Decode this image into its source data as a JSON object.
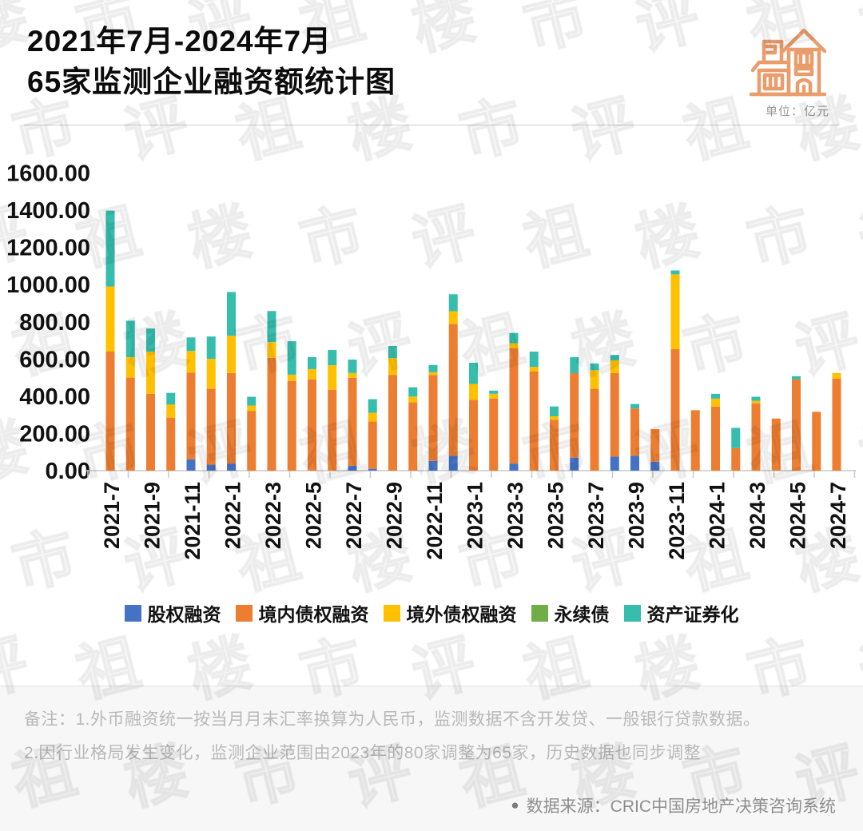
{
  "header": {
    "title_line1": "2021年7月-2024年7月",
    "title_line2": "65家监测企业融资额统计图",
    "unit_label": "单位：亿元"
  },
  "watermark": {
    "characters": [
      "楼",
      "市",
      "评",
      "祖"
    ]
  },
  "chart_data": {
    "type": "bar",
    "stacked": true,
    "title": "65家监测企业融资额统计图",
    "unit": "亿元",
    "xlabel": "",
    "ylabel": "",
    "ylim": [
      0,
      1600
    ],
    "ytick_step": 200,
    "ytick_decimals": 2,
    "grid": false,
    "legend_position": "bottom",
    "x_label_every": 2,
    "categories": [
      "2021-7",
      "2021-8",
      "2021-9",
      "2021-10",
      "2021-11",
      "2021-12",
      "2022-1",
      "2022-2",
      "2022-3",
      "2022-4",
      "2022-5",
      "2022-6",
      "2022-7",
      "2022-8",
      "2022-9",
      "2022-10",
      "2022-11",
      "2022-12",
      "2023-1",
      "2023-2",
      "2023-3",
      "2023-4",
      "2023-5",
      "2023-6",
      "2023-7",
      "2023-8",
      "2023-9",
      "2023-10",
      "2023-11",
      "2023-12",
      "2024-1",
      "2024-2",
      "2024-3",
      "2024-4",
      "2024-5",
      "2024-6",
      "2024-7"
    ],
    "series": [
      {
        "name": "股权融资",
        "color": "#4472C4",
        "values": [
          0,
          0,
          0,
          0,
          60,
          32,
          38,
          0,
          0,
          0,
          0,
          0,
          26,
          10,
          0,
          0,
          52,
          80,
          0,
          0,
          38,
          0,
          0,
          70,
          0,
          75,
          80,
          48,
          0,
          0,
          0,
          0,
          0,
          0,
          0,
          0,
          0
        ]
      },
      {
        "name": "境内债权融资",
        "color": "#ED7D31",
        "values": [
          640,
          500,
          413,
          285,
          466,
          408,
          487,
          320,
          606,
          482,
          491,
          435,
          473,
          254,
          515,
          367,
          462,
          709,
          381,
          387,
          620,
          533,
          273,
          454,
          440,
          449,
          254,
          175,
          653,
          325,
          344,
          121,
          362,
          280,
          490,
          316,
          495
        ]
      },
      {
        "name": "境外债权融资",
        "color": "#FFC000",
        "values": [
          350,
          110,
          227,
          70,
          117,
          161,
          200,
          30,
          85,
          34,
          55,
          132,
          26,
          47,
          90,
          31,
          15,
          68,
          85,
          26,
          27,
          25,
          19,
          0,
          100,
          69,
          0,
          0,
          402,
          0,
          43,
          0,
          13,
          0,
          0,
          0,
          30
        ]
      },
      {
        "name": "永续债",
        "color": "#70AD47",
        "values": [
          0,
          0,
          0,
          0,
          0,
          0,
          0,
          0,
          0,
          0,
          0,
          0,
          0,
          0,
          0,
          0,
          0,
          0,
          0,
          0,
          0,
          0,
          0,
          0,
          0,
          0,
          0,
          0,
          0,
          0,
          0,
          0,
          0,
          0,
          0,
          0,
          0
        ]
      },
      {
        "name": "资产证券化",
        "color": "#36BDAD",
        "values": [
          408,
          196,
          124,
          63,
          73,
          120,
          235,
          47,
          167,
          180,
          64,
          82,
          72,
          73,
          65,
          50,
          39,
          91,
          114,
          17,
          55,
          82,
          53,
          86,
          36,
          29,
          24,
          0,
          21,
          0,
          26,
          109,
          22,
          0,
          18,
          0,
          0
        ]
      }
    ]
  },
  "footer": {
    "note_line1": "备注：1.外币融资统一按当月月末汇率换算为人民币，监测数据不含开发贷、一般银行贷款数据。",
    "note_line2": "2.因行业格局发生变化，监测企业范围由2023年的80家调整为65家，历史数据也同步调整",
    "source_bullet": "●",
    "source": "数据来源：CRIC中国房地产决策咨询系统"
  }
}
